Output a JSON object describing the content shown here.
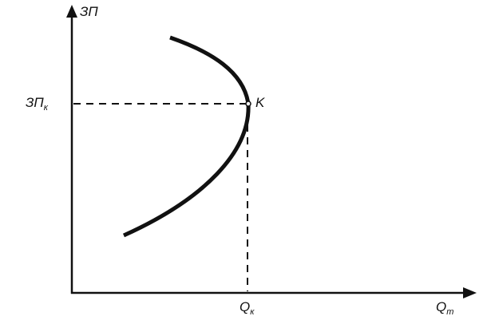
{
  "diagram": {
    "y_axis_label": "ЗП",
    "x_axis_label": "Q",
    "x_axis_label_sub": "т",
    "point_label": "K",
    "y_marker_label": "ЗП",
    "y_marker_label_sub": "к",
    "x_marker_label": "Q",
    "x_marker_label_sub": "к",
    "line_color": "#111111"
  }
}
